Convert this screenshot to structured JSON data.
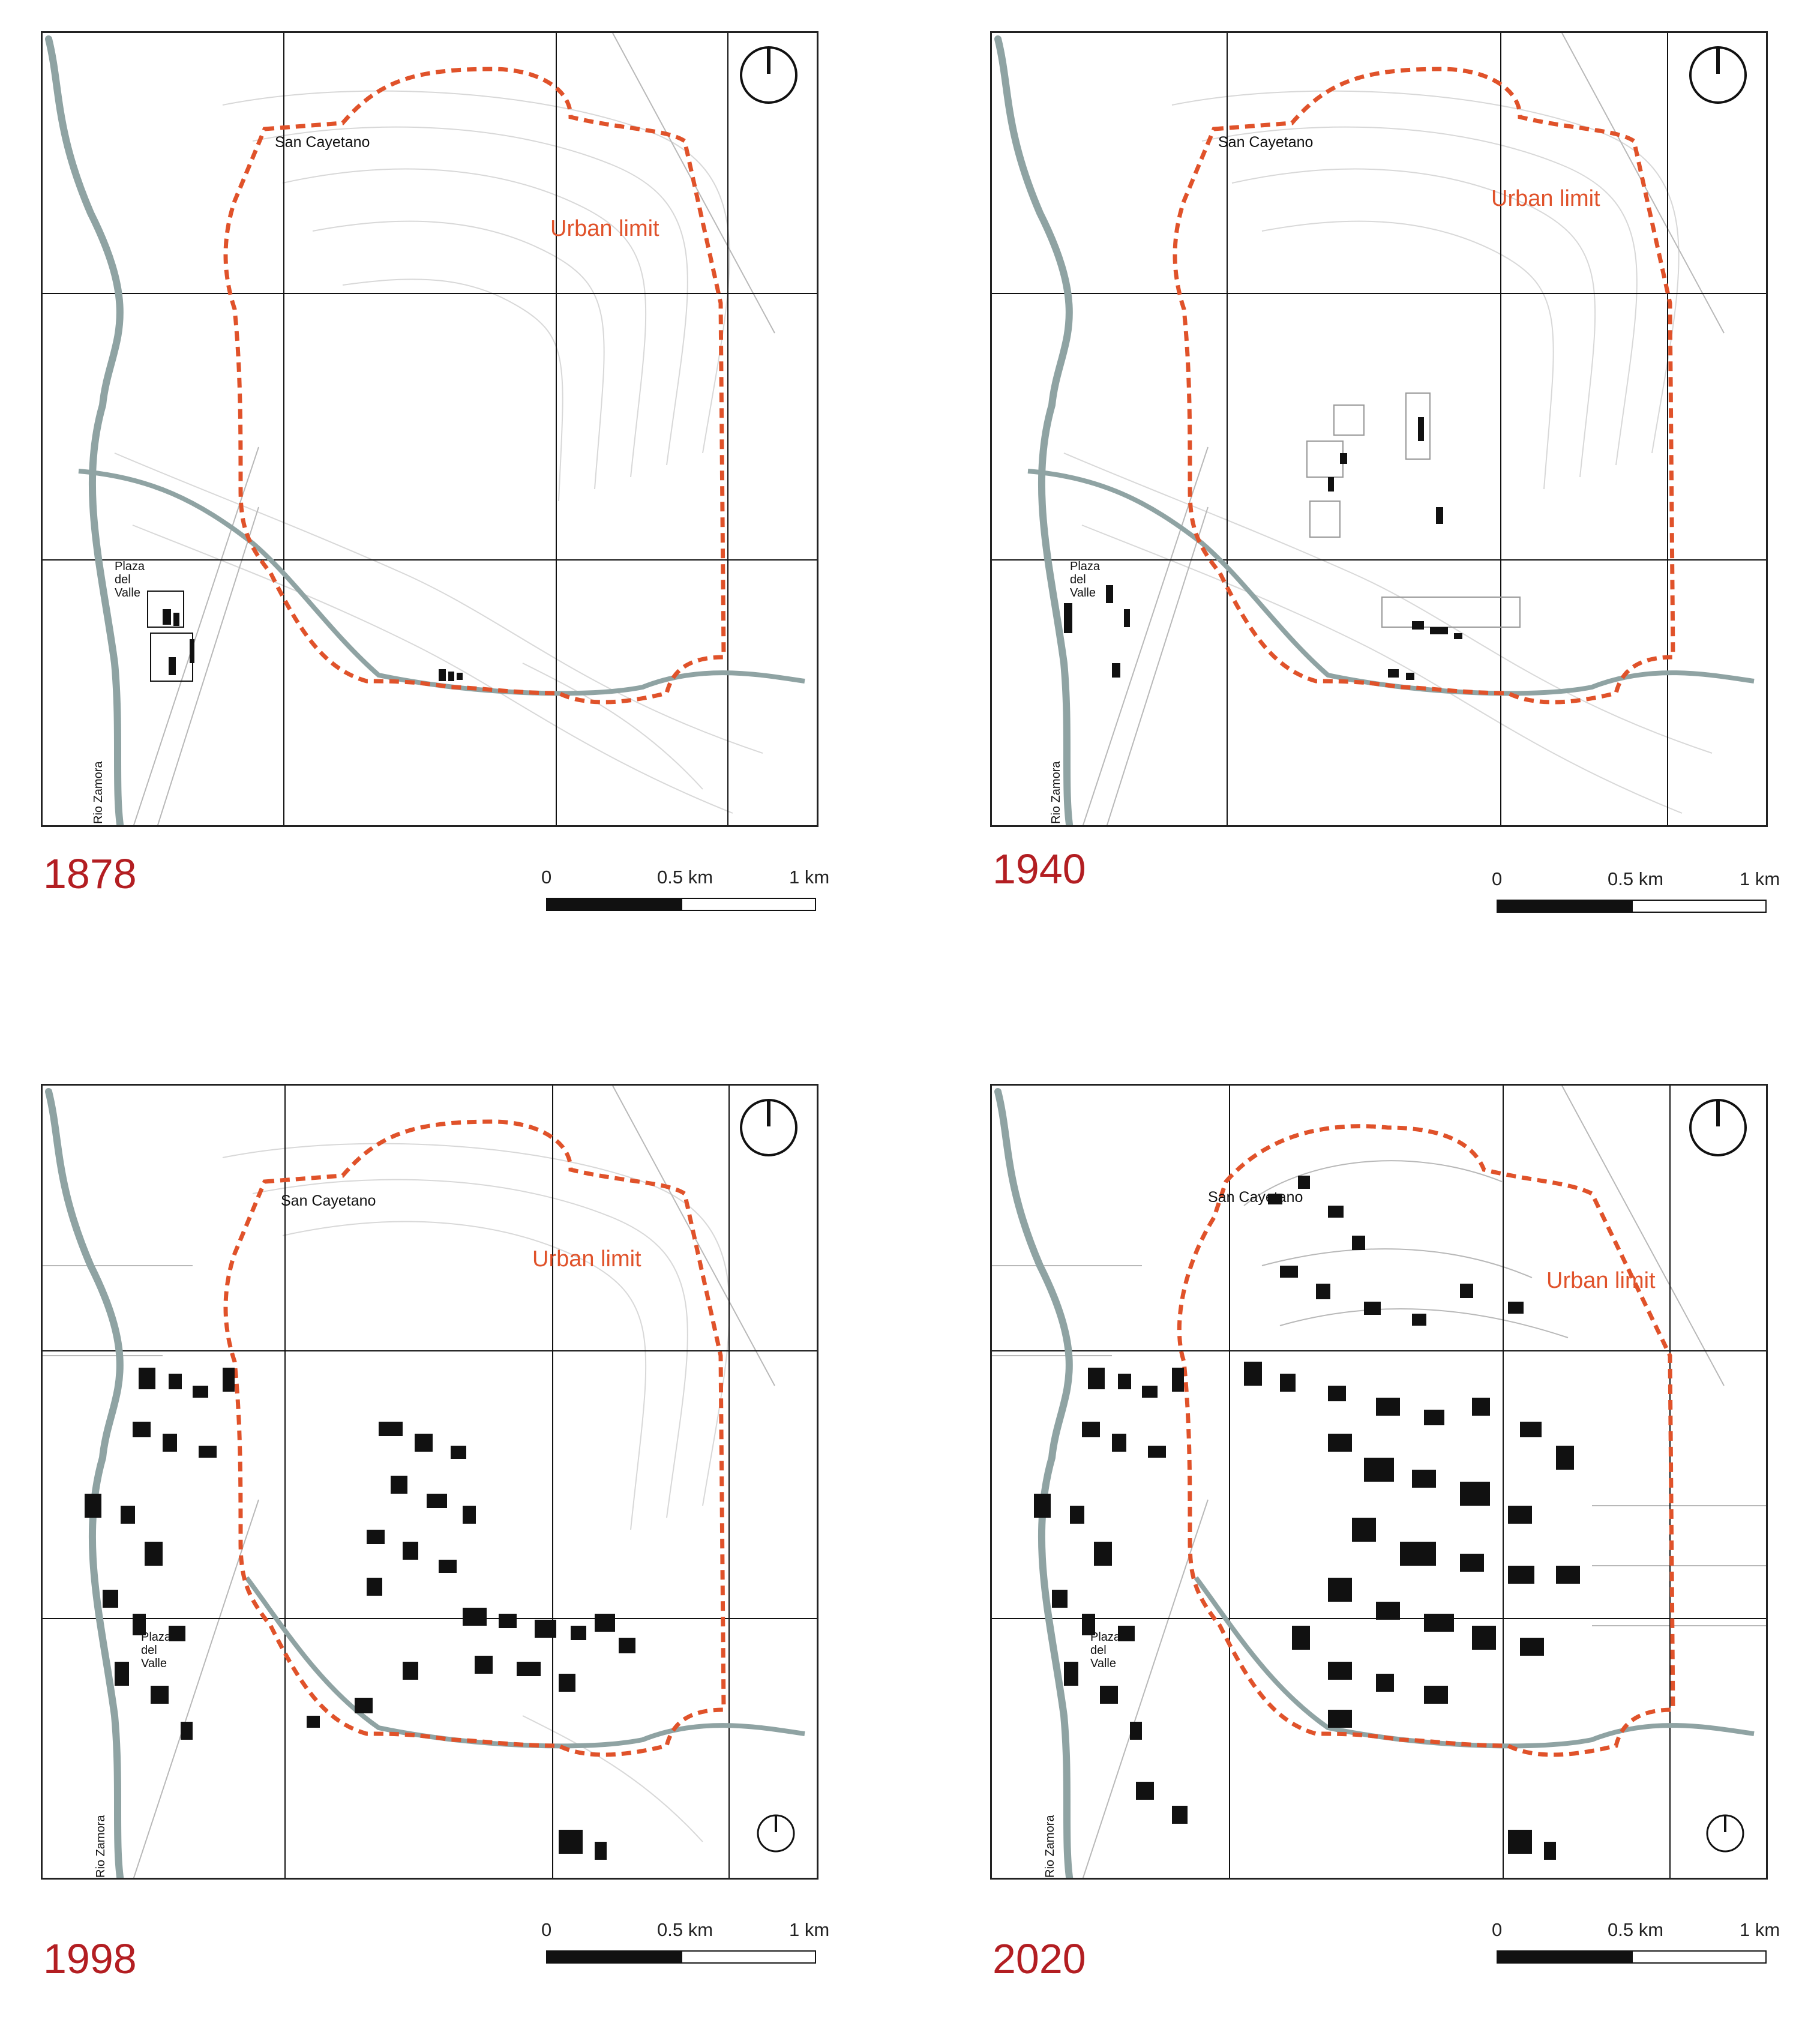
{
  "panels": [
    {
      "year": "1878",
      "place_label": "San Cayetano",
      "urban_label": "Urban limit",
      "plaza_label": [
        "Plaza",
        "del",
        "Valle"
      ],
      "river_label": "Rio Zamora",
      "development": "minimal"
    },
    {
      "year": "1940",
      "place_label": "San Cayetano",
      "urban_label": "Urban limit",
      "plaza_label": [
        "Plaza",
        "del",
        "Valle"
      ],
      "river_label": "Rio Zamora",
      "development": "sparse"
    },
    {
      "year": "1998",
      "place_label": "San Cayetano",
      "urban_label": "Urban limit",
      "plaza_label": [
        "Plaza",
        "del",
        "Valle"
      ],
      "river_label": "Rio Zamora",
      "development": "moderate"
    },
    {
      "year": "2020",
      "place_label": "San Cayetano",
      "urban_label": "Urban limit",
      "plaza_label": [
        "Plaza",
        "del",
        "Valle"
      ],
      "river_label": "Rio Zamora",
      "development": "dense"
    }
  ],
  "scale_bar": {
    "ticks": [
      "0",
      "0.5 km",
      "1 km"
    ]
  },
  "colors": {
    "urban_limit": "#e0522a",
    "year_text": "#b31e22",
    "river": "#8fa3a3",
    "buildings": "#000000",
    "contours": "#d0d0d0"
  },
  "icons": {
    "north_arrow": "north-arrow-icon"
  }
}
